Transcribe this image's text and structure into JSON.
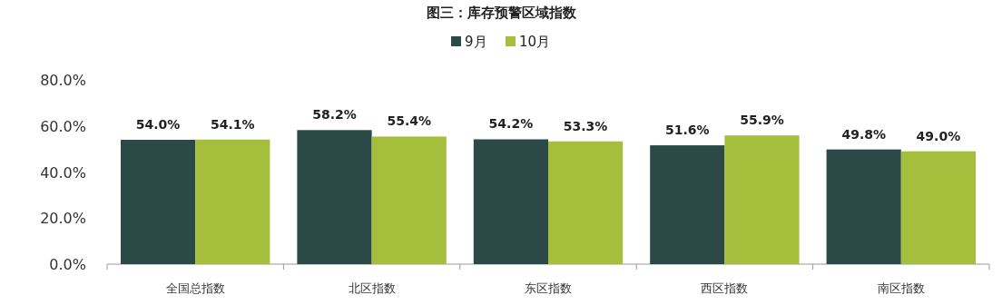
{
  "chart_data": {
    "type": "bar",
    "title": "图三：库存预警区域指数",
    "categories": [
      "全国总指数",
      "北区指数",
      "东区指数",
      "西区指数",
      "南区指数"
    ],
    "series": [
      {
        "name": "9月",
        "color": "#2b4a47",
        "values": [
          54.0,
          58.2,
          54.2,
          51.6,
          49.8
        ],
        "value_labels": [
          "54.0%",
          "58.2%",
          "54.2%",
          "51.6%",
          "49.8%"
        ]
      },
      {
        "name": "10月",
        "color": "#a5be3c",
        "values": [
          54.1,
          55.4,
          53.3,
          55.9,
          49.0
        ],
        "value_labels": [
          "54.1%",
          "55.4%",
          "53.3%",
          "55.9%",
          "49.0%"
        ]
      }
    ],
    "ylim": [
      0,
      80
    ],
    "yticks": [
      {
        "value": 0,
        "label": "0.0%"
      },
      {
        "value": 20,
        "label": "20.0%"
      },
      {
        "value": 40,
        "label": "40.0%"
      },
      {
        "value": 60,
        "label": "60.0%"
      },
      {
        "value": 80,
        "label": "80.0%"
      }
    ],
    "legend": "top",
    "grid": false
  }
}
